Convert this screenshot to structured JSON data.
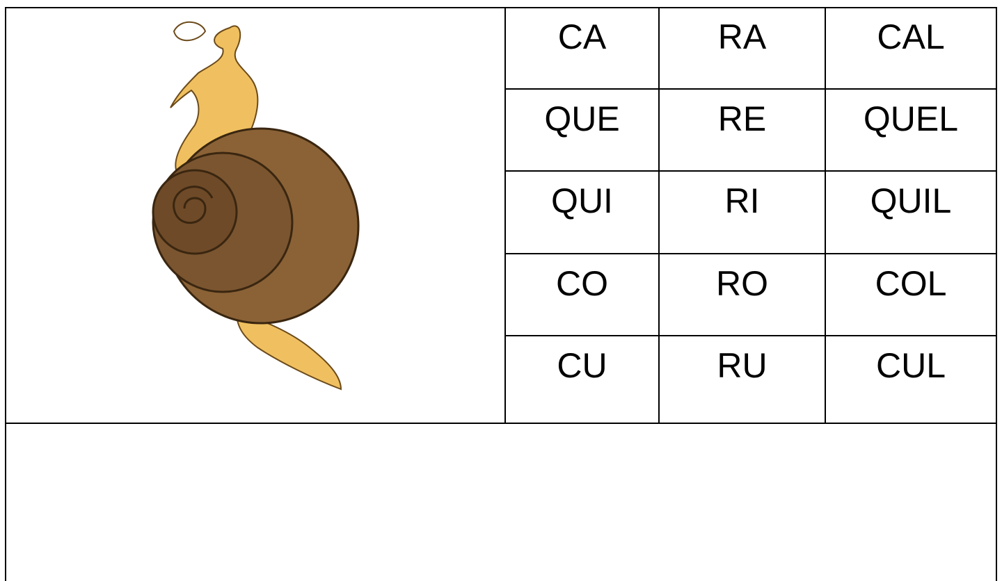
{
  "table": {
    "rows": [
      [
        "CA",
        "RA",
        "CAL"
      ],
      [
        "QUE",
        "RE",
        "QUEL"
      ],
      [
        "QUI",
        "RI",
        "QUIL"
      ],
      [
        "CO",
        "RO",
        "COL"
      ],
      [
        "CU",
        "RU",
        "CUL"
      ]
    ]
  }
}
